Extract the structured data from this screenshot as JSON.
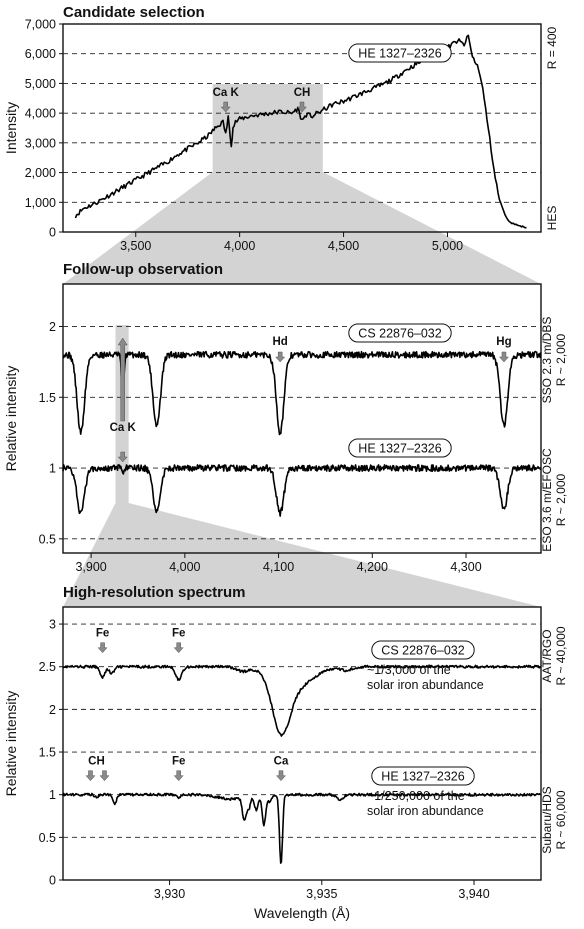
{
  "chart_data": [
    {
      "type": "line",
      "title": "Candidate selection",
      "xlabel": "",
      "ylabel": "Intensity",
      "xlim": [
        3150,
        5450
      ],
      "ylim": [
        0,
        7000
      ],
      "x_ticks": [
        "3,500",
        "4,000",
        "4,500",
        "5,000"
      ],
      "x_tick_values": [
        3500,
        4000,
        4500,
        5000
      ],
      "y_ticks": [
        "0",
        "1,000",
        "2,000",
        "3,000",
        "4,000",
        "5,000",
        "6,000",
        "7,000"
      ],
      "y_tick_values": [
        0,
        1000,
        2000,
        3000,
        4000,
        5000,
        6000,
        7000
      ],
      "grid": "horizontal dashed",
      "right_labels": [
        "R = 400",
        "HES"
      ],
      "highlight_band": [
        3870,
        4400
      ],
      "series": [
        {
          "name": "HE 1327–2326",
          "x": [
            3210,
            3250,
            3300,
            3350,
            3400,
            3450,
            3500,
            3550,
            3600,
            3650,
            3700,
            3750,
            3800,
            3850,
            3870,
            3900,
            3920,
            3933,
            3945,
            3960,
            3968,
            3980,
            4000,
            4050,
            4100,
            4150,
            4200,
            4250,
            4280,
            4300,
            4320,
            4350,
            4400,
            4450,
            4500,
            4550,
            4600,
            4650,
            4700,
            4750,
            4800,
            4850,
            4900,
            4950,
            5000,
            5050,
            5080,
            5100,
            5120,
            5150,
            5170,
            5190,
            5210,
            5230,
            5250,
            5270,
            5290,
            5310,
            5330,
            5350,
            5380
          ],
          "y": [
            550,
            800,
            950,
            1150,
            1350,
            1550,
            1750,
            1950,
            2150,
            2350,
            2600,
            2800,
            3000,
            3250,
            3400,
            3600,
            3700,
            3300,
            3850,
            2950,
            3500,
            3700,
            3800,
            3900,
            3950,
            4000,
            4050,
            4000,
            4150,
            3750,
            3950,
            3900,
            4100,
            4300,
            4400,
            4550,
            4700,
            4850,
            5000,
            5200,
            5450,
            5650,
            5850,
            6000,
            6200,
            6450,
            6300,
            6600,
            5900,
            5500,
            4800,
            3800,
            2800,
            1800,
            1100,
            700,
            400,
            300,
            250,
            200,
            150
          ]
        }
      ],
      "annotations": [
        {
          "text": "Ca K",
          "x": 3933
        },
        {
          "text": "CH",
          "x": 4300
        }
      ]
    },
    {
      "type": "line",
      "title": "Follow-up observation",
      "xlabel": "",
      "ylabel": "Relative intensity",
      "xlim": [
        3870,
        4380
      ],
      "ylim": [
        0.4,
        2.3
      ],
      "x_ticks": [
        "3,900",
        "4,000",
        "4,100",
        "4,200",
        "4,300"
      ],
      "x_tick_values": [
        3900,
        4000,
        4100,
        4200,
        4300
      ],
      "y_ticks": [
        "0.5",
        "1",
        "1.5",
        "2"
      ],
      "y_tick_values": [
        0.5,
        1,
        1.5,
        2
      ],
      "grid": "horizontal dashed",
      "right_labels": [
        "SSO 2.3 m/DBS",
        "R ~ 2,000",
        "ESO 3.6 m/EFOSC",
        "R ~ 2,000"
      ],
      "highlight_band": [
        3926,
        3940
      ],
      "line_centers": [
        3889,
        3933.7,
        3970,
        4101.7,
        4340.5
      ],
      "series": [
        {
          "name": "CS 22876–032",
          "continuum": 1.8,
          "depths": [
            0.55,
            0.35,
            0.5,
            0.55,
            0.5
          ]
        },
        {
          "name": "HE 1327–2326",
          "continuum": 1.0,
          "depths": [
            0.32,
            0.04,
            0.3,
            0.32,
            0.28
          ]
        }
      ],
      "annotations": [
        {
          "text": "Ca K",
          "x": 3933.7
        },
        {
          "text": "Hd",
          "x": 4101.7
        },
        {
          "text": "Hg",
          "x": 4340.5
        }
      ]
    },
    {
      "type": "line",
      "title": "High-resolution spectrum",
      "xlabel": "Wavelength (Å)",
      "ylabel": "Relative intensity",
      "xlim": [
        3926.5,
        3942.2
      ],
      "ylim": [
        0,
        3.2
      ],
      "x_ticks": [
        "3,930",
        "3,935",
        "3,940"
      ],
      "x_tick_values": [
        3930,
        3935,
        3940
      ],
      "y_ticks": [
        "0",
        "0.5",
        "1",
        "1.5",
        "2",
        "2.5",
        "3"
      ],
      "y_tick_values": [
        0,
        0.5,
        1,
        1.5,
        2,
        2.5,
        3
      ],
      "grid": "horizontal dashed",
      "right_labels": [
        "AAT/RGO",
        "R ~ 40,000",
        "Subaru/HDS",
        "R ~ 60,000"
      ],
      "series": [
        {
          "name": "CS 22876–032",
          "continuum": 2.5,
          "lines": [
            [
              3927.8,
              0.12,
              0.08
            ],
            [
              3928.1,
              0.08,
              0.08
            ],
            [
              3930.3,
              0.15,
              0.1
            ],
            [
              3932.4,
              0.05,
              0.2
            ],
            [
              3933.66,
              0.6,
              0.28
            ],
            [
              3934.05,
              0.25,
              0.6
            ],
            [
              3935.8,
              0.04,
              0.2
            ]
          ]
        },
        {
          "name": "HE 1327–2326",
          "continuum": 1.0,
          "lines": [
            [
              3927.6,
              0.03,
              0.05
            ],
            [
              3928.2,
              0.1,
              0.06
            ],
            [
              3930.3,
              0.04,
              0.06
            ],
            [
              3932.0,
              0.05,
              0.4
            ],
            [
              3932.45,
              0.28,
              0.06
            ],
            [
              3932.6,
              0.15,
              0.06
            ],
            [
              3932.85,
              0.18,
              0.06
            ],
            [
              3933.1,
              0.35,
              0.06
            ],
            [
              3933.66,
              0.82,
              0.05
            ],
            [
              3933.3,
              0.08,
              0.06
            ],
            [
              3935.6,
              0.06,
              0.1
            ]
          ]
        }
      ],
      "annotations": [
        {
          "text": "Fe",
          "x": 3927.8,
          "series": 0
        },
        {
          "text": "Fe",
          "x": 3930.3,
          "series": 0
        },
        {
          "text": "CH",
          "x": 3927.6,
          "series": 1
        },
        {
          "text": "Fe",
          "x": 3930.3,
          "series": 1
        },
        {
          "text": "Ca",
          "x": 3933.66,
          "series": 1
        }
      ],
      "notes": [
        {
          "series": 0,
          "lines": [
            "~1/3,000 of the",
            "solar iron abundance"
          ]
        },
        {
          "series": 1,
          "lines": [
            "~1/250,000 of the",
            "solar iron abundance"
          ]
        }
      ]
    }
  ]
}
